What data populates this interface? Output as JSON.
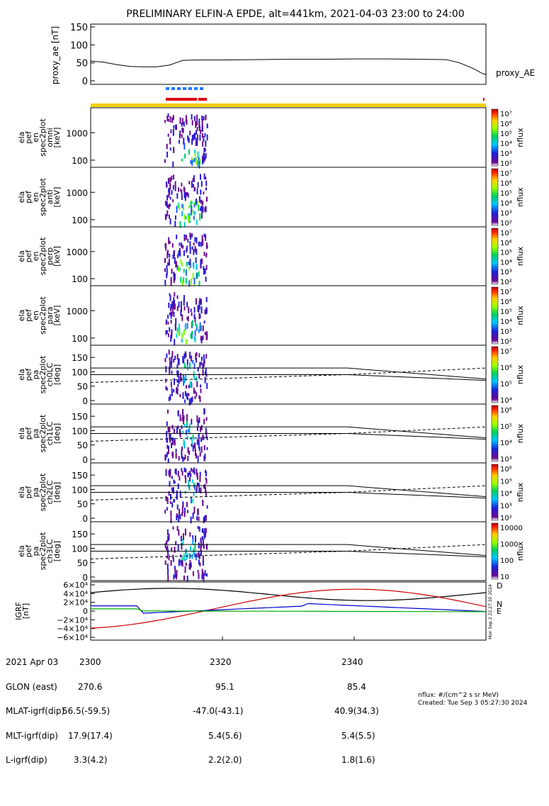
{
  "title": "PRELIMINARY ELFIN-A EPDE, alt=441km, 2021-04-03 23:00 to 24:00",
  "chart_data": [
    {
      "type": "line",
      "name": "proxy_ae",
      "ylabel": "proxy_ae [nT]",
      "series_label": "proxy_AE",
      "yticks": [
        "150",
        "100",
        "50",
        "0"
      ],
      "ylim": [
        -10,
        160
      ],
      "x_minutes": [
        0,
        2,
        4,
        6,
        8,
        10,
        12,
        14,
        16,
        20,
        25,
        30,
        35,
        40,
        45,
        50,
        54,
        56,
        58,
        59.5,
        60
      ],
      "values": [
        55,
        52,
        45,
        40,
        39,
        39,
        44,
        57,
        58,
        58,
        59,
        60,
        60,
        61,
        61,
        60,
        59,
        50,
        35,
        20,
        18
      ]
    },
    {
      "type": "heatmap",
      "name": "ela_pef_en_spec2plot_omni",
      "ylabel": [
        "ela",
        "pef",
        "en",
        "spec2plot",
        "omni",
        "[keV]"
      ],
      "yticks": [
        "1000",
        "100"
      ],
      "colorbar": {
        "label": "nflux",
        "ticks": [
          "10⁷",
          "10⁶",
          "10⁵",
          "10⁴",
          "10³",
          "10²"
        ]
      }
    },
    {
      "type": "heatmap",
      "name": "ela_pef_en_spec2plot_anti",
      "ylabel": [
        "ela",
        "pef",
        "en",
        "spec2plot",
        "anti",
        "[keV]"
      ],
      "yticks": [
        "1000",
        "100"
      ],
      "colorbar": {
        "label": "nflux",
        "ticks": [
          "10⁷",
          "10⁶",
          "10⁵",
          "10⁴",
          "10³",
          "10²"
        ]
      }
    },
    {
      "type": "heatmap",
      "name": "ela_pef_en_spec2plot_perp",
      "ylabel": [
        "ela",
        "pef",
        "en",
        "spec2plot",
        "perp",
        "[keV]"
      ],
      "yticks": [
        "1000",
        "100"
      ],
      "colorbar": {
        "label": "nflux",
        "ticks": [
          "10⁷",
          "10⁶",
          "10⁵",
          "10⁴",
          "10³",
          "10²"
        ]
      }
    },
    {
      "type": "heatmap",
      "name": "ela_pef_en_spec2plot_para",
      "ylabel": [
        "ela",
        "pef",
        "en",
        "spec2plot",
        "para",
        "[keV]"
      ],
      "yticks": [
        "1000",
        "100"
      ],
      "colorbar": {
        "label": "nflux",
        "ticks": [
          "10⁷",
          "10⁶",
          "10⁵",
          "10⁴",
          "10³",
          "10²"
        ]
      }
    },
    {
      "type": "heatmap",
      "name": "ela_pef_pa_spec2plot_ch0LC",
      "ylabel": [
        "ela",
        "pef",
        "pa",
        "spec2plot",
        "ch0LC",
        "[deg]"
      ],
      "yticks": [
        "150",
        "100",
        "50",
        "0"
      ],
      "colorbar": {
        "label": "nflux",
        "ticks": [
          "10⁷",
          "10⁶",
          "10⁵",
          "10⁴"
        ]
      }
    },
    {
      "type": "heatmap",
      "name": "ela_pef_pa_spec2plot_ch1LC",
      "ylabel": [
        "ela",
        "pef",
        "pa",
        "spec2plot",
        "ch1LC",
        "[deg]"
      ],
      "yticks": [
        "150",
        "100",
        "50",
        "0"
      ],
      "colorbar": {
        "label": "nflux",
        "ticks": [
          "10⁶",
          "10⁵",
          "10⁴",
          "10³"
        ]
      }
    },
    {
      "type": "heatmap",
      "name": "ela_pef_pa_spec2plot_ch2LC",
      "ylabel": [
        "ela",
        "pef",
        "pa",
        "spec2plot",
        "ch2LC",
        "[deg]"
      ],
      "yticks": [
        "150",
        "100",
        "50",
        "0"
      ],
      "colorbar": {
        "label": "nflux",
        "ticks": [
          "10⁶",
          "10⁵",
          "10⁴",
          "10³",
          "10²"
        ]
      }
    },
    {
      "type": "heatmap",
      "name": "ela_pef_pa_spec2plot_ch3LC",
      "ylabel": [
        "ela",
        "pef",
        "pa",
        "spec2plot",
        "ch3LC",
        "[deg]"
      ],
      "yticks": [
        "150",
        "100",
        "50",
        "0"
      ],
      "colorbar": {
        "label": "nflux",
        "ticks": [
          "10000",
          "1000",
          "100",
          "10"
        ]
      }
    },
    {
      "type": "line",
      "name": "IGRF",
      "ylabel": [
        "IGRF",
        "[nT]"
      ],
      "yticks": [
        "6×10⁴",
        "4×10⁴",
        "2×10⁴",
        "0",
        "−2×10⁴",
        "−4×10⁴",
        "−6×10⁴"
      ],
      "ylim": [
        -60000,
        60000
      ],
      "legend": [
        "D",
        "N",
        "E"
      ],
      "series_colors": [
        "#000000",
        "#cc0000",
        "#0000cc",
        "#00aa00"
      ],
      "side_text": "Mon Sep 2 22:27:30 2024"
    }
  ],
  "footer": {
    "rows": [
      [
        "2021 Apr 03",
        "2300",
        "2320",
        "2340"
      ],
      [
        "GLON (east)",
        "270.6",
        "95.1",
        "85.4"
      ],
      [
        "MLAT-igrf(dip)",
        "56.5(-59.5)",
        "-47.0(-43.1)",
        "40.9(34.3)"
      ],
      [
        "MLT-igrf(dip)",
        "17.9(17.4)",
        "5.4(5.6)",
        "5.4(5.5)"
      ],
      [
        "L-igrf(dip)",
        "3.3(4.2)",
        "2.2(2.0)",
        "1.8(1.6)"
      ]
    ],
    "units_note": "nflux: #/(cm^2 s sr MeV)",
    "created": "Created: Tue Sep  3 05:27:30 2024"
  },
  "colors": {
    "axis": "#000000",
    "science_zone_blue": "#1e78ff",
    "science_zone_red": "#e00000",
    "orbit_bar": "#f0d000"
  }
}
